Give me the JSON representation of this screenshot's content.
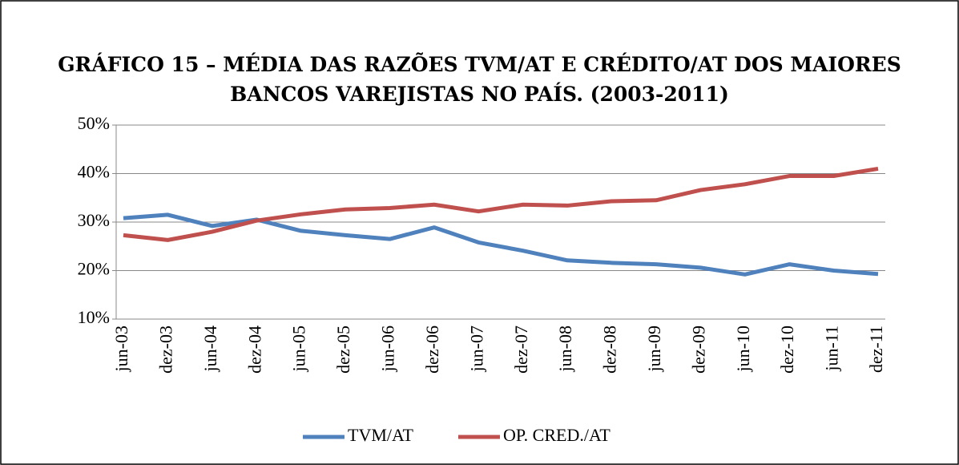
{
  "chart_data": {
    "type": "line",
    "title": "GRÁFICO 15 – MÉDIA DAS RAZÕES TVM/AT E CRÉDITO/AT DOS MAIORES BANCOS VAREJISTAS NO PAÍS. (2003-2011)",
    "categories": [
      "jun-03",
      "dez-03",
      "jun-04",
      "dez-04",
      "jun-05",
      "dez-05",
      "jun-06",
      "dez-06",
      "jun-07",
      "dez-07",
      "jun-08",
      "dez-08",
      "jun-09",
      "dez-09",
      "jun-10",
      "dez-10",
      "jun-11",
      "dez-11"
    ],
    "series": [
      {
        "name": "TVM/AT",
        "color": "#4f81bd",
        "values": [
          30.8,
          31.5,
          29.2,
          30.5,
          28.2,
          27.3,
          26.5,
          28.9,
          25.8,
          24.1,
          22.1,
          21.6,
          21.3,
          20.6,
          19.2,
          21.3,
          20.0,
          19.3
        ]
      },
      {
        "name": "OP. CRED./AT",
        "color": "#c0504d",
        "values": [
          27.3,
          26.3,
          28.0,
          30.3,
          31.6,
          32.6,
          32.9,
          33.6,
          32.2,
          33.6,
          33.4,
          34.3,
          34.5,
          36.6,
          37.8,
          39.5,
          39.5,
          41.0
        ]
      }
    ],
    "ylim": [
      10,
      50
    ],
    "yticks": [
      {
        "value": 10,
        "label": "10%"
      },
      {
        "value": 20,
        "label": "20%"
      },
      {
        "value": 30,
        "label": "30%"
      },
      {
        "value": 40,
        "label": "40%"
      },
      {
        "value": 50,
        "label": "50%"
      }
    ],
    "grid": true,
    "legend": "bottom"
  }
}
